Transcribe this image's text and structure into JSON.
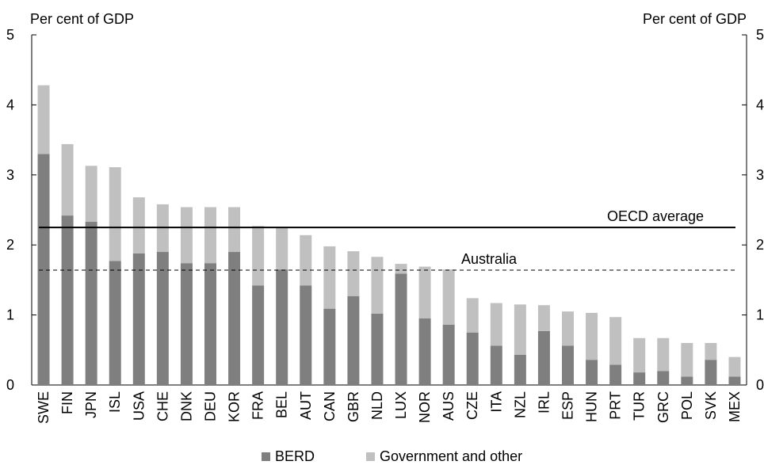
{
  "chart_data": {
    "type": "bar",
    "stacked": true,
    "ylabel_left": "Per cent of GDP",
    "ylabel_right": "Per cent of GDP",
    "ylim": [
      0,
      5
    ],
    "yticks": [
      "0",
      "1",
      "2",
      "3",
      "4",
      "5"
    ],
    "categories": [
      "SWE",
      "FIN",
      "JPN",
      "ISL",
      "USA",
      "CHE",
      "DNK",
      "DEU",
      "KOR",
      "FRA",
      "BEL",
      "AUT",
      "CAN",
      "GBR",
      "NLD",
      "LUX",
      "NOR",
      "AUS",
      "CZE",
      "ITA",
      "NZL",
      "IRL",
      "ESP",
      "HUN",
      "PRT",
      "TUR",
      "GRC",
      "POL",
      "SVK",
      "MEX"
    ],
    "series": [
      {
        "name": "BERD",
        "color": "#7f7f7f",
        "values": [
          3.3,
          2.42,
          2.33,
          1.77,
          1.88,
          1.9,
          1.74,
          1.74,
          1.9,
          1.42,
          1.65,
          1.42,
          1.09,
          1.27,
          1.02,
          1.59,
          0.95,
          0.86,
          0.75,
          0.56,
          0.43,
          0.77,
          0.56,
          0.36,
          0.29,
          0.18,
          0.2,
          0.12,
          0.36,
          0.12
        ]
      },
      {
        "name": "Government and other",
        "color": "#c0c0c0",
        "values": [
          0.98,
          1.02,
          0.8,
          1.34,
          0.8,
          0.68,
          0.8,
          0.8,
          0.64,
          0.85,
          0.6,
          0.72,
          0.89,
          0.64,
          0.81,
          0.14,
          0.74,
          0.79,
          0.49,
          0.61,
          0.72,
          0.37,
          0.49,
          0.67,
          0.68,
          0.49,
          0.47,
          0.48,
          0.24,
          0.28
        ]
      }
    ],
    "reference_lines": [
      {
        "label": "OECD average",
        "value": 2.25,
        "style": "solid"
      },
      {
        "label": "Australia",
        "value": 1.64,
        "style": "dashed"
      }
    ],
    "legend_position": "bottom"
  },
  "legend": {
    "berd": "BERD",
    "gov": "Government and other"
  },
  "colors": {
    "berd": "#7f7f7f",
    "gov": "#c0c0c0",
    "axis": "#000000"
  }
}
